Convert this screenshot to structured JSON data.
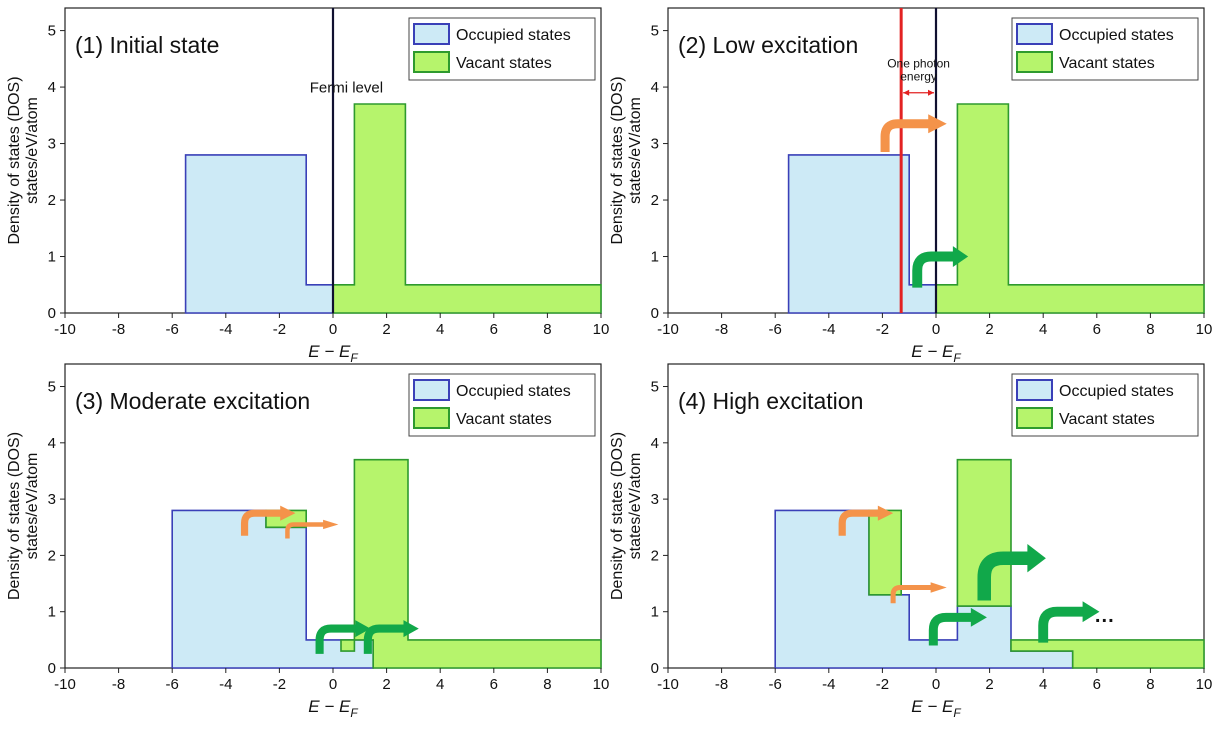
{
  "colors": {
    "occupied_fill": "#cdeaf6",
    "occupied_edge": "#3a40b8",
    "vacant_fill": "#b6f46c",
    "vacant_edge": "#2e9a2e",
    "fermi_line": "#101030",
    "photon_line": "#e32222",
    "orange_arrow": "#f4934a",
    "green_arrow": "#11a84a"
  },
  "axes_common": {
    "x_label": "E − E",
    "x_label_sub": "F",
    "y_label_line1": "Density of states (DOS)",
    "y_label_line2": "states/eV/atom",
    "x_ticks": [
      "-10",
      "-8",
      "-6",
      "-4",
      "-2",
      "0",
      "2",
      "4",
      "6",
      "8",
      "10"
    ],
    "y_ticks": [
      "0",
      "1",
      "2",
      "3",
      "4",
      "5"
    ]
  },
  "legend": {
    "occupied": "Occupied states",
    "vacant": "Vacant states"
  },
  "chart_data": [
    {
      "type": "area",
      "title": "(1) Initial state",
      "xlabel": "E − E_F",
      "ylabel": "Density of states (DOS) states/eV/atom",
      "xlim": [
        -10,
        10
      ],
      "ylim": [
        0,
        5.4
      ],
      "legend_position": "top-right",
      "annotation": "Fermi level",
      "fermi_level": 0,
      "series": [
        {
          "name": "Occupied states",
          "steps": [
            [
              -5.5,
              0
            ],
            [
              -5.5,
              2.8
            ],
            [
              -1,
              2.8
            ],
            [
              -1,
              0.5
            ],
            [
              0,
              0.5
            ],
            [
              0,
              0
            ]
          ]
        },
        {
          "name": "Vacant states",
          "steps": [
            [
              0,
              0
            ],
            [
              0,
              0.5
            ],
            [
              0.8,
              0.5
            ],
            [
              0.8,
              3.7
            ],
            [
              2.7,
              3.7
            ],
            [
              2.7,
              0.5
            ],
            [
              10,
              0.5
            ],
            [
              10,
              0
            ]
          ]
        }
      ]
    },
    {
      "type": "area",
      "title": "(2) Low excitation",
      "xlabel": "E − E_F",
      "ylabel": "Density of states (DOS) states/eV/atom",
      "xlim": [
        -10,
        10
      ],
      "ylim": [
        0,
        5.4
      ],
      "legend_position": "top-right",
      "annotation_line1": "One photon",
      "annotation_line2": "energy",
      "photon_energy_line": -1.3,
      "fermi_level": 0,
      "series": [
        {
          "name": "Occupied states",
          "steps": [
            [
              -5.5,
              0
            ],
            [
              -5.5,
              2.8
            ],
            [
              -1,
              2.8
            ],
            [
              -1,
              0.5
            ],
            [
              0,
              0.5
            ],
            [
              0,
              0
            ]
          ]
        },
        {
          "name": "Vacant states",
          "steps": [
            [
              0,
              0
            ],
            [
              0,
              0.5
            ],
            [
              0.8,
              0.5
            ],
            [
              0.8,
              3.7
            ],
            [
              2.7,
              3.7
            ],
            [
              2.7,
              0.5
            ],
            [
              10,
              0.5
            ],
            [
              10,
              0
            ]
          ]
        }
      ]
    },
    {
      "type": "area",
      "title": "(3) Moderate excitation",
      "xlabel": "E − E_F",
      "ylabel": "Density of states (DOS) states/eV/atom",
      "xlim": [
        -10,
        10
      ],
      "ylim": [
        0,
        5.4
      ],
      "legend_position": "top-right",
      "series": [
        {
          "name": "Occupied states",
          "steps": [
            [
              -6,
              0
            ],
            [
              -6,
              2.8
            ],
            [
              -2.5,
              2.8
            ],
            [
              -2.5,
              2.5
            ],
            [
              -1,
              2.5
            ],
            [
              -1,
              0.5
            ],
            [
              1.5,
              0.5
            ],
            [
              1.5,
              0
            ]
          ]
        },
        {
          "name": "Vacant states",
          "steps": [
            [
              -2.5,
              2.5
            ],
            [
              -2.5,
              2.8
            ],
            [
              -1,
              2.8
            ],
            [
              -1,
              2.5
            ]
          ]
        },
        {
          "name": "Vacant states",
          "steps": [
            [
              0.3,
              0.5
            ],
            [
              0.3,
              0.3
            ],
            [
              0.8,
              0.3
            ],
            [
              0.8,
              3.7
            ],
            [
              2.8,
              3.7
            ],
            [
              2.8,
              0.5
            ],
            [
              10,
              0.5
            ],
            [
              10,
              0
            ],
            [
              1.5,
              0
            ],
            [
              1.5,
              0.5
            ]
          ]
        }
      ]
    },
    {
      "type": "area",
      "title": "(4) High excitation",
      "xlabel": "E − E_F",
      "ylabel": "Density of states (DOS) states/eV/atom",
      "xlim": [
        -10,
        10
      ],
      "ylim": [
        0,
        5.4
      ],
      "legend_position": "top-right",
      "annotation": "···",
      "series": [
        {
          "name": "Occupied states",
          "steps": [
            [
              -6,
              0
            ],
            [
              -6,
              2.8
            ],
            [
              -2.5,
              2.8
            ],
            [
              -2.5,
              1.3
            ],
            [
              -1,
              1.3
            ],
            [
              -1,
              0.5
            ],
            [
              0.8,
              0.5
            ],
            [
              0.8,
              1.1
            ],
            [
              2.8,
              1.1
            ],
            [
              2.8,
              0.3
            ],
            [
              5.1,
              0.3
            ],
            [
              5.1,
              0
            ]
          ]
        },
        {
          "name": "Vacant states",
          "steps": [
            [
              -2.5,
              1.3
            ],
            [
              -2.5,
              2.8
            ],
            [
              -1.3,
              2.8
            ],
            [
              -1.3,
              1.3
            ]
          ]
        },
        {
          "name": "Vacant states",
          "steps": [
            [
              0.8,
              1.1
            ],
            [
              0.8,
              3.7
            ],
            [
              2.8,
              3.7
            ],
            [
              2.8,
              1.1
            ]
          ]
        },
        {
          "name": "Vacant states",
          "steps": [
            [
              2.8,
              0.3
            ],
            [
              2.8,
              0.5
            ],
            [
              10,
              0.5
            ],
            [
              10,
              0
            ],
            [
              5.1,
              0
            ],
            [
              5.1,
              0.3
            ]
          ]
        }
      ]
    }
  ]
}
